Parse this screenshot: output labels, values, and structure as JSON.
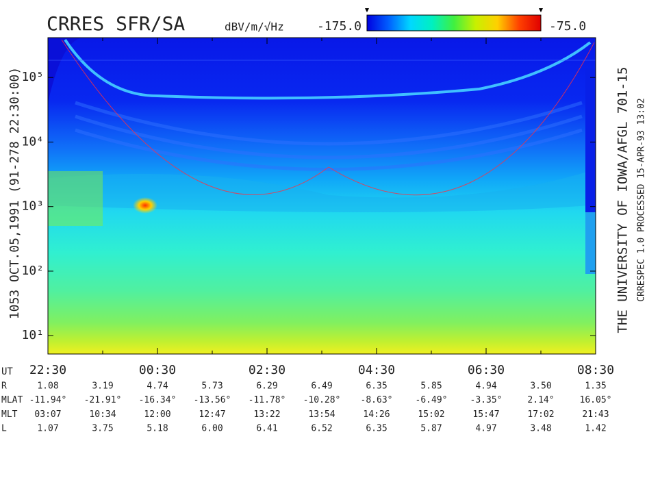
{
  "chart_data": {
    "type": "spectrogram",
    "title": "CRRES SFR/SA",
    "colorbar": {
      "label": "dBV/m/√Hz",
      "zlim": [
        -175,
        -75
      ],
      "zticks": [
        {
          "value": -175,
          "label": "-175.0"
        },
        {
          "value": -75,
          "label": "-75.0"
        }
      ],
      "colormap": [
        "#0000e0",
        "#0060ff",
        "#00d8ff",
        "#00f0c0",
        "#40f040",
        "#c8f000",
        "#ffd000",
        "#ff4000",
        "#e00000"
      ]
    },
    "ylabel": "1053   OCT.05,1991   (91-278 22:30:00)",
    "ylog": true,
    "ylim": [
      5.2,
      414000
    ],
    "yticks": [
      {
        "value": 10,
        "label": "10¹"
      },
      {
        "value": 100,
        "label": "10²"
      },
      {
        "value": 1000,
        "label": "10³"
      },
      {
        "value": 10000,
        "label": "10⁴"
      },
      {
        "value": 100000,
        "label": "10⁵"
      }
    ],
    "xlabel": "UT",
    "categories": [
      "22:30",
      null,
      "00:30",
      null,
      "02:30",
      null,
      "04:30",
      null,
      "06:30",
      null,
      "08:30"
    ],
    "ephemeris": [
      {
        "name": "R",
        "values": [
          "1.08",
          "3.19",
          "4.74",
          "5.73",
          "6.29",
          "6.49",
          "6.35",
          "5.85",
          "4.94",
          "3.50",
          "1.35"
        ]
      },
      {
        "name": "MLAT",
        "values": [
          "-11.94°",
          "-21.91°",
          "-16.34°",
          "-13.56°",
          "-11.78°",
          "-10.28°",
          "-8.63°",
          "-6.49°",
          "-3.35°",
          "2.14°",
          "16.05°"
        ]
      },
      {
        "name": "MLT",
        "values": [
          "03:07",
          "10:34",
          "12:00",
          "12:47",
          "13:22",
          "13:54",
          "14:26",
          "15:02",
          "15:47",
          "17:02",
          "21:43"
        ]
      },
      {
        "name": "L",
        "values": [
          "1.07",
          "3.75",
          "5.18",
          "6.00",
          "6.41",
          "6.52",
          "6.35",
          "5.87",
          "4.97",
          "3.48",
          "1.42"
        ]
      }
    ],
    "credit": "THE UNIVERSITY OF IOWA/AFGL 701-15",
    "processing": "CRRESPEC 1.0   PROCESSED 15-APR-93  13:02"
  }
}
